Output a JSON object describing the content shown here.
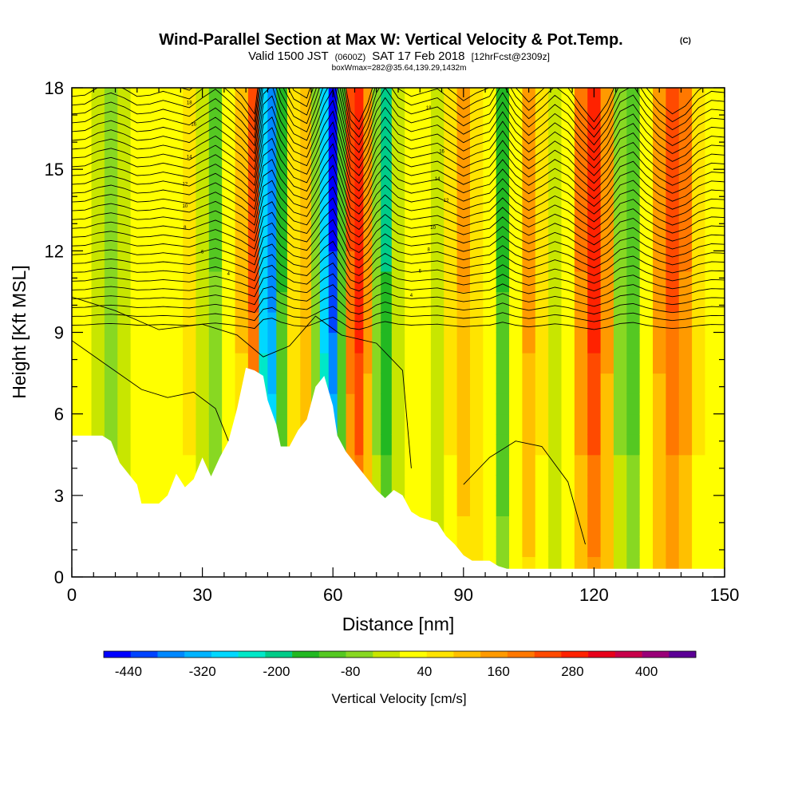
{
  "chart_data": {
    "type": "heatmap",
    "title": "Wind-Parallel Section at Max W: Vertical Velocity & Pot.Temp.",
    "title_mark": "(C)",
    "subtitle_prefix": "Valid 1500 JST",
    "subtitle_utc": "(0600Z)",
    "subtitle_date": "SAT 17 Feb 2018",
    "subtitle_forecast": "[12hrFcst@2309z]",
    "subtitle2": "boxWmax=282@35.64,139.29,1432m",
    "xlabel": "Distance [nm]",
    "ylabel": "Height [Kft MSL]",
    "xlim": [
      0,
      150
    ],
    "ylim": [
      0,
      18
    ],
    "xticks": [
      0,
      30,
      60,
      90,
      120,
      150
    ],
    "yticks": [
      0,
      3,
      6,
      9,
      12,
      15,
      18
    ],
    "colorbar": {
      "label": "Vertical Velocity [cm/s]",
      "tick_labels": [
        "-440",
        "-320",
        "-200",
        "-80",
        "40",
        "160",
        "280",
        "400"
      ],
      "min": -480,
      "max": 480,
      "colors": [
        "#0000ff",
        "#0044ff",
        "#0088ff",
        "#00b4ff",
        "#00d8ff",
        "#00e8c8",
        "#00cc88",
        "#22b822",
        "#55c822",
        "#88d822",
        "#c8e600",
        "#ffff00",
        "#ffe400",
        "#ffc000",
        "#ff9a00",
        "#ff7800",
        "#ff4a00",
        "#ff2200",
        "#e8001a",
        "#c8004a",
        "#9a0078",
        "#5c0096"
      ]
    },
    "columns": [
      {
        "x": 0,
        "w": 40
      },
      {
        "x": 3,
        "w": 30
      },
      {
        "x": 6,
        "w": -30
      },
      {
        "x": 9,
        "w": -60
      },
      {
        "x": 12,
        "w": -20
      },
      {
        "x": 15,
        "w": 40
      },
      {
        "x": 18,
        "w": 30
      },
      {
        "x": 21,
        "w": 0
      },
      {
        "x": 24,
        "w": 30
      },
      {
        "x": 27,
        "w": 60
      },
      {
        "x": 30,
        "w": -20
      },
      {
        "x": 33,
        "w": -90
      },
      {
        "x": 36,
        "w": 0
      },
      {
        "x": 39,
        "w": 100
      },
      {
        "x": 42,
        "w": 240
      },
      {
        "x": 44,
        "w": -300
      },
      {
        "x": 46,
        "w": -380
      },
      {
        "x": 48,
        "w": -140
      },
      {
        "x": 51,
        "w": 60
      },
      {
        "x": 54,
        "w": 120
      },
      {
        "x": 56,
        "w": -80
      },
      {
        "x": 58,
        "w": -300
      },
      {
        "x": 60,
        "w": -440
      },
      {
        "x": 62,
        "w": -120
      },
      {
        "x": 64,
        "w": 220
      },
      {
        "x": 66,
        "w": 300
      },
      {
        "x": 68,
        "w": 160
      },
      {
        "x": 70,
        "w": -60
      },
      {
        "x": 72,
        "w": -180
      },
      {
        "x": 75,
        "w": -20
      },
      {
        "x": 78,
        "w": 40
      },
      {
        "x": 81,
        "w": 10
      },
      {
        "x": 84,
        "w": -20
      },
      {
        "x": 87,
        "w": 60
      },
      {
        "x": 90,
        "w": 140
      },
      {
        "x": 93,
        "w": 80
      },
      {
        "x": 96,
        "w": 40
      },
      {
        "x": 99,
        "w": -140
      },
      {
        "x": 102,
        "w": 40
      },
      {
        "x": 105,
        "w": 150
      },
      {
        "x": 108,
        "w": 60
      },
      {
        "x": 111,
        "w": -40
      },
      {
        "x": 114,
        "w": 40
      },
      {
        "x": 117,
        "w": 180
      },
      {
        "x": 120,
        "w": 300
      },
      {
        "x": 123,
        "w": 160
      },
      {
        "x": 126,
        "w": -60
      },
      {
        "x": 129,
        "w": -120
      },
      {
        "x": 132,
        "w": 40
      },
      {
        "x": 135,
        "w": 160
      },
      {
        "x": 138,
        "w": 240
      },
      {
        "x": 141,
        "w": 180
      },
      {
        "x": 144,
        "w": 60
      },
      {
        "x": 147,
        "w": 0
      },
      {
        "x": 150,
        "w": 10
      }
    ],
    "terrain": [
      [
        0,
        5.2
      ],
      [
        7,
        5.2
      ],
      [
        9,
        5.0
      ],
      [
        11,
        4.2
      ],
      [
        13,
        3.8
      ],
      [
        15,
        3.4
      ],
      [
        16,
        2.7
      ],
      [
        20,
        2.7
      ],
      [
        22,
        3.0
      ],
      [
        24,
        3.8
      ],
      [
        26,
        3.3
      ],
      [
        28,
        3.6
      ],
      [
        30,
        4.4
      ],
      [
        32,
        3.7
      ],
      [
        34,
        4.4
      ],
      [
        36,
        5.0
      ],
      [
        38,
        6.2
      ],
      [
        40,
        7.7
      ],
      [
        42,
        7.6
      ],
      [
        44,
        7.4
      ],
      [
        45,
        6.5
      ],
      [
        47,
        5.6
      ],
      [
        48,
        4.8
      ],
      [
        50,
        4.8
      ],
      [
        52,
        5.4
      ],
      [
        54,
        5.8
      ],
      [
        56,
        7.0
      ],
      [
        58,
        7.4
      ],
      [
        60,
        6.3
      ],
      [
        61,
        5.2
      ],
      [
        63,
        4.6
      ],
      [
        65,
        4.2
      ],
      [
        68,
        3.6
      ],
      [
        70,
        3.2
      ],
      [
        72,
        2.9
      ],
      [
        74,
        3.2
      ],
      [
        76,
        3.0
      ],
      [
        78,
        2.4
      ],
      [
        80,
        2.2
      ],
      [
        84,
        2.0
      ],
      [
        86,
        1.5
      ],
      [
        88,
        1.2
      ],
      [
        90,
        0.8
      ],
      [
        92,
        0.6
      ],
      [
        96,
        0.6
      ],
      [
        98,
        0.4
      ],
      [
        100,
        0.3
      ],
      [
        150,
        0.3
      ]
    ],
    "theta_contour_labels": [
      "18",
      "16",
      "14",
      "12",
      "10",
      "8",
      "6",
      "4"
    ]
  }
}
